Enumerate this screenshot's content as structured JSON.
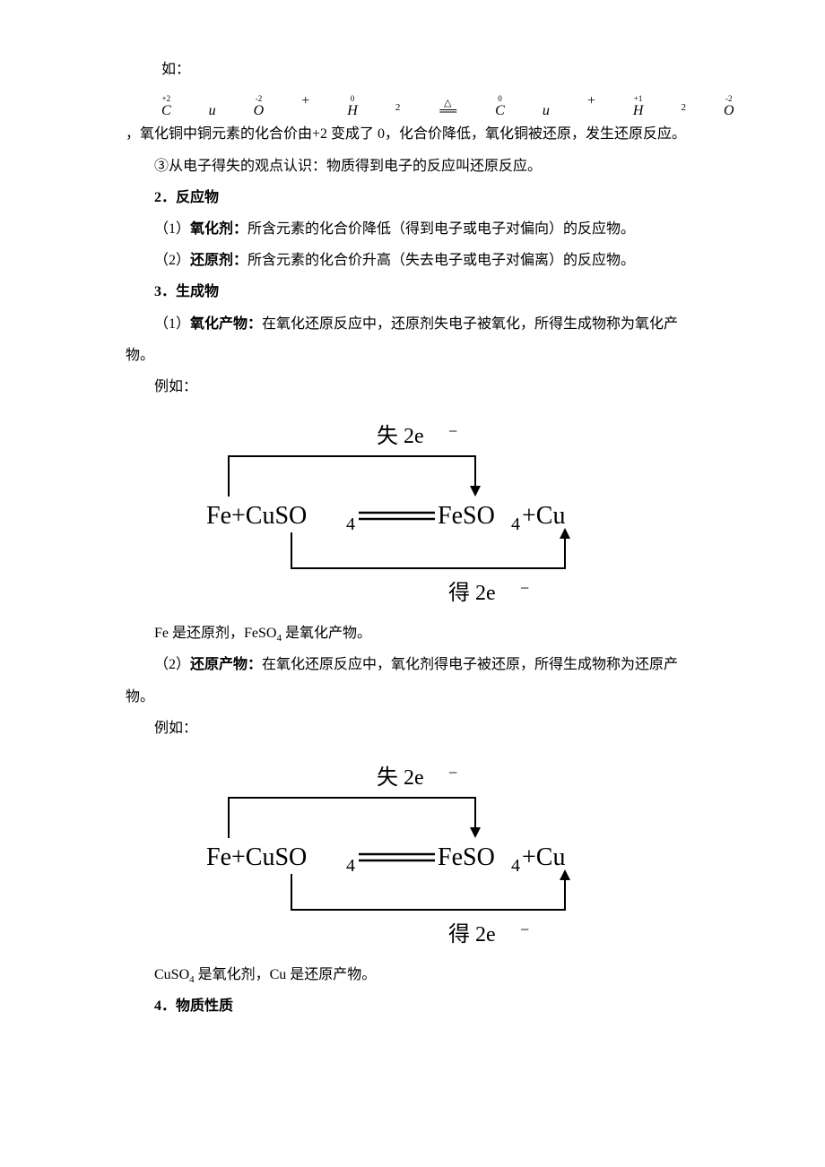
{
  "p1_prefix": "如：",
  "eq1": {
    "parts": [
      {
        "ox": "+2",
        "t": "C",
        "it": true
      },
      {
        "ox": "",
        "t": "u",
        "it": true
      },
      {
        "ox": "-2",
        "t": "O",
        "it": true
      },
      {
        "sym": "+"
      },
      {
        "ox": "0",
        "t": "H",
        "it": true
      },
      {
        "sub": "2"
      },
      {
        "dbl": true
      },
      {
        "ox": "0",
        "t": "C",
        "it": true
      },
      {
        "ox": "",
        "t": "u",
        "it": true
      },
      {
        "sym": "+"
      },
      {
        "ox": "+1",
        "t": "H",
        "it": true
      },
      {
        "sub": "2"
      },
      {
        "ox": "-2",
        "t": "O",
        "it": true
      }
    ]
  },
  "p1_suffix": "，氧化铜中铜元素的化合价由+2 变成了 0，化合价降低，氧化铜被还原，发生还原反应。",
  "p2": "③从电子得失的观点认识：物质得到电子的反应叫还原反应。",
  "h2": "2．反应物",
  "p3a": "（1）",
  "p3b": "氧化剂：",
  "p3c": "所含元素的化合价降低（得到电子或电子对偏向）的反应物。",
  "p4a": "（2）",
  "p4b": "还原剂：",
  "p4c": "所含元素的化合价升高（失去电子或电子对偏离）的反应物。",
  "h3": "3．生成物",
  "p5a": "（1）",
  "p5b": "氧化产物：",
  "p5c": "在氧化还原反应中，还原剂失电子被氧化，所得生成物称为氧化产物。",
  "p6": "例如：",
  "diagram1": {
    "top_label": "失 2e",
    "top_sup": "−",
    "formula": "Fe+CuSO₄══FeSO₄+Cu",
    "bot_label": "得 2e",
    "bot_sup": "−",
    "arrow_color": "#000000",
    "text_color": "#000000"
  },
  "p7": "Fe 是还原剂，FeSO",
  "p7sub": "4",
  "p7b": "是氧化产物。",
  "p8a": "（2）",
  "p8b": "还原产物：",
  "p8c": "在氧化还原反应中，氧化剂得电子被还原，所得生成物称为还原产物。",
  "p9": "例如：",
  "diagram2": {
    "top_label": "失 2e",
    "top_sup": "−",
    "formula": "Fe+CuSO₄══FeSO₄+Cu",
    "bot_label": "得 2e",
    "bot_sup": "−",
    "arrow_color": "#000000",
    "text_color": "#000000"
  },
  "p10a": "CuSO",
  "p10sub": "4",
  "p10b": "是氧化剂，Cu 是还原产物。",
  "h4": "4．物质性质"
}
